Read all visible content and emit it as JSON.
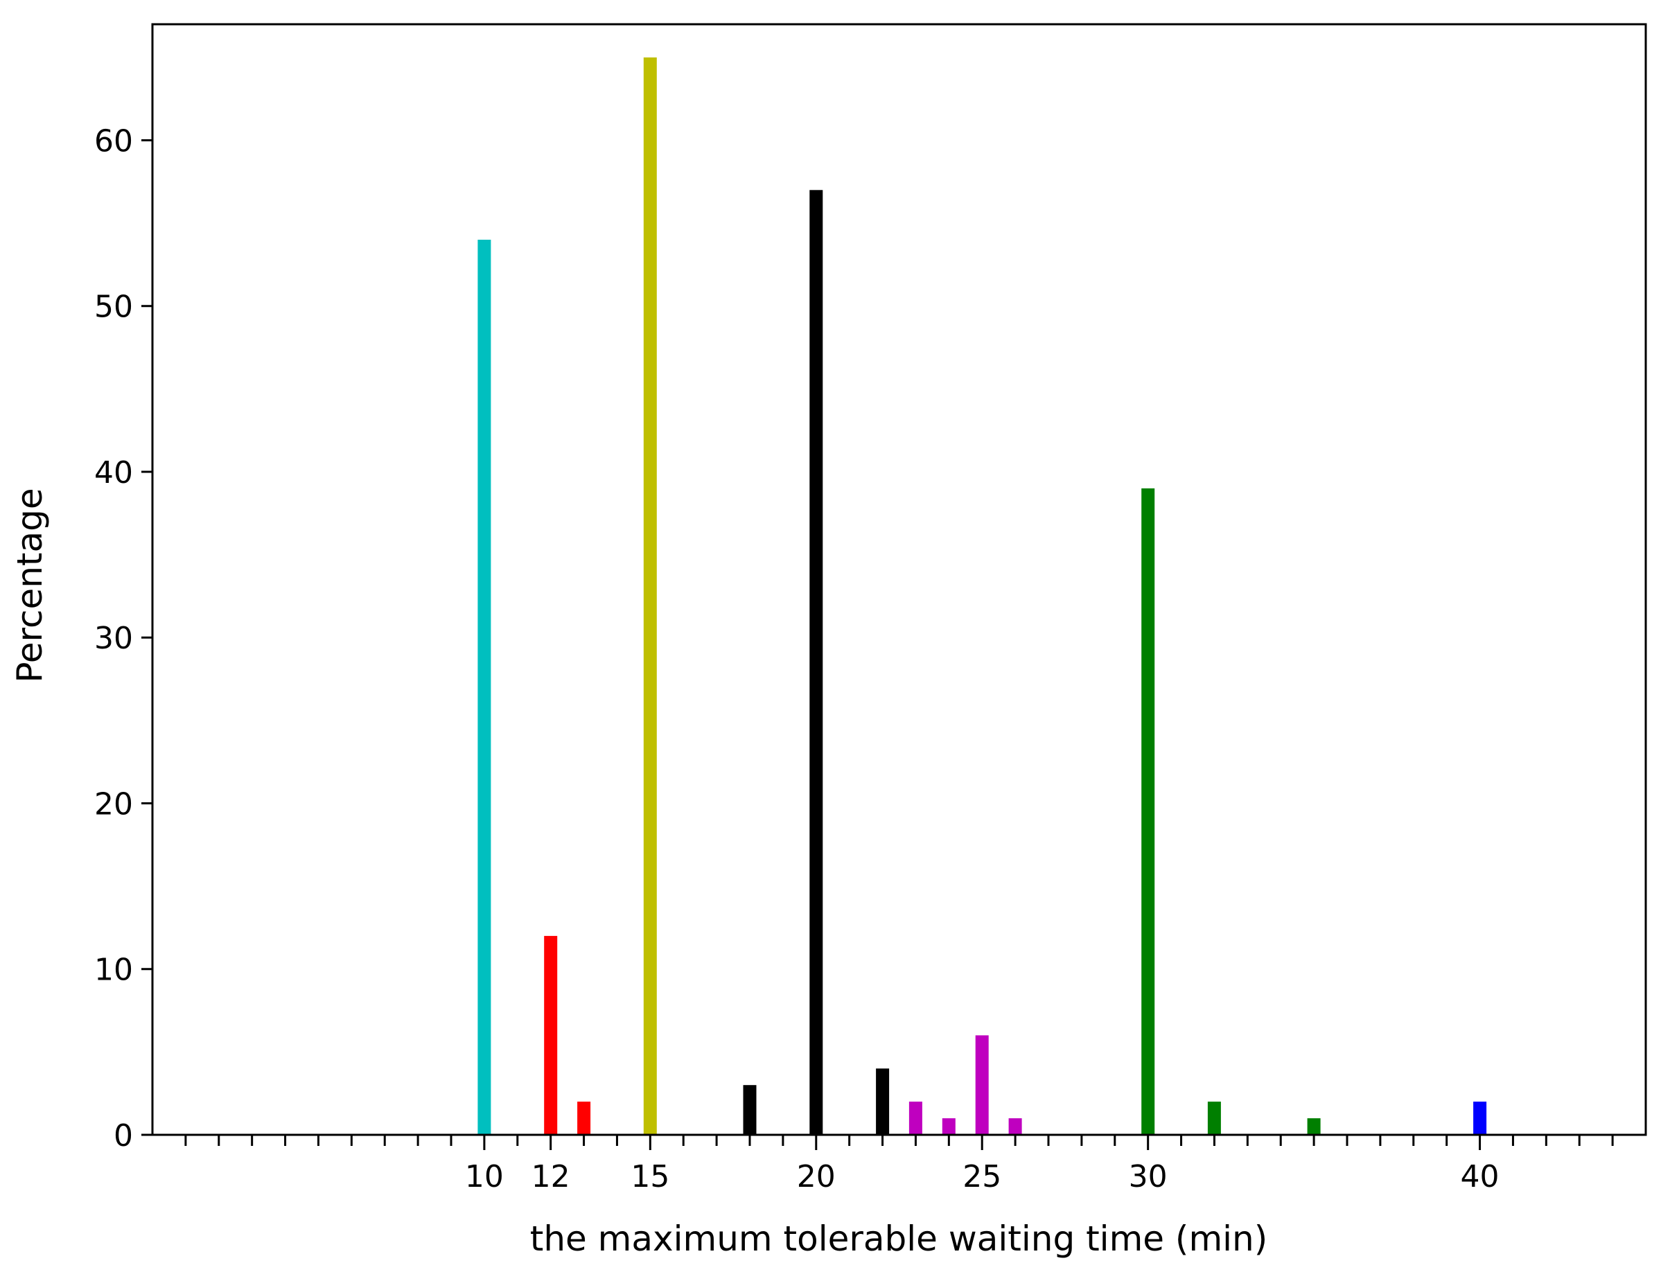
{
  "chart_data": {
    "type": "bar",
    "xlabel": "the maximum tolerable waiting time (min)",
    "ylabel": "Percentage",
    "xlim": [
      0,
      45
    ],
    "ylim": [
      0,
      67
    ],
    "x_ticks": [
      10,
      12,
      15,
      20,
      25,
      30,
      40
    ],
    "y_ticks": [
      0,
      10,
      20,
      30,
      40,
      50,
      60
    ],
    "x_minor_step": 1,
    "grid": false,
    "legend": "none",
    "bars": [
      {
        "x": 10,
        "value": 54,
        "color": "#00bfbf"
      },
      {
        "x": 12,
        "value": 12,
        "color": "#ff0000"
      },
      {
        "x": 13,
        "value": 2,
        "color": "#ff0000"
      },
      {
        "x": 15,
        "value": 65,
        "color": "#bfbf00"
      },
      {
        "x": 18,
        "value": 3,
        "color": "#000000"
      },
      {
        "x": 20,
        "value": 57,
        "color": "#000000"
      },
      {
        "x": 22,
        "value": 4,
        "color": "#000000"
      },
      {
        "x": 23,
        "value": 2,
        "color": "#bf00bf"
      },
      {
        "x": 24,
        "value": 1,
        "color": "#bf00bf"
      },
      {
        "x": 25,
        "value": 6,
        "color": "#bf00bf"
      },
      {
        "x": 26,
        "value": 1,
        "color": "#bf00bf"
      },
      {
        "x": 30,
        "value": 39,
        "color": "#007f00"
      },
      {
        "x": 32,
        "value": 2,
        "color": "#007f00"
      },
      {
        "x": 35,
        "value": 1,
        "color": "#007f00"
      },
      {
        "x": 40,
        "value": 2,
        "color": "#0000ff"
      }
    ]
  }
}
